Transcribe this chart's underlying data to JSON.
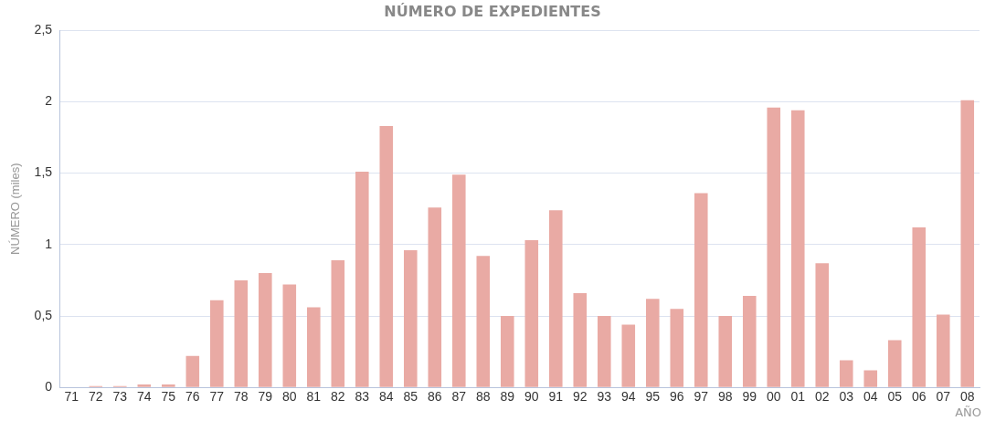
{
  "chart_data": {
    "type": "bar",
    "title": "NÚMERO DE EXPEDIENTES",
    "ylabel": "NÚMERO (miles)",
    "xlabel": "AÑO",
    "categories": [
      "71",
      "72",
      "73",
      "74",
      "75",
      "76",
      "77",
      "78",
      "79",
      "80",
      "81",
      "82",
      "83",
      "84",
      "85",
      "86",
      "87",
      "88",
      "89",
      "90",
      "91",
      "92",
      "93",
      "94",
      "95",
      "96",
      "97",
      "98",
      "99",
      "00",
      "01",
      "02",
      "03",
      "04",
      "05",
      "06",
      "07",
      "08"
    ],
    "values": [
      0,
      0.01,
      0.01,
      0.02,
      0.02,
      0.22,
      0.61,
      0.75,
      0.8,
      0.72,
      0.56,
      0.89,
      1.51,
      1.83,
      0.96,
      1.26,
      1.49,
      0.92,
      0.5,
      1.03,
      1.24,
      0.66,
      0.5,
      0.44,
      0.62,
      0.55,
      1.36,
      0.5,
      0.64,
      1.96,
      1.94,
      0.87,
      0.19,
      0.12,
      0.33,
      1.12,
      0.51,
      2.01
    ],
    "color": "#e9aaa4",
    "ylim": [
      0,
      2.5
    ],
    "yticks": [
      {
        "value": 0,
        "label": "0"
      },
      {
        "value": 0.5,
        "label": "0,5"
      },
      {
        "value": 1,
        "label": "1"
      },
      {
        "value": 1.5,
        "label": "1,5"
      },
      {
        "value": 2,
        "label": "2"
      },
      {
        "value": 2.5,
        "label": "2,5"
      }
    ],
    "grid": "y",
    "legend": false
  }
}
